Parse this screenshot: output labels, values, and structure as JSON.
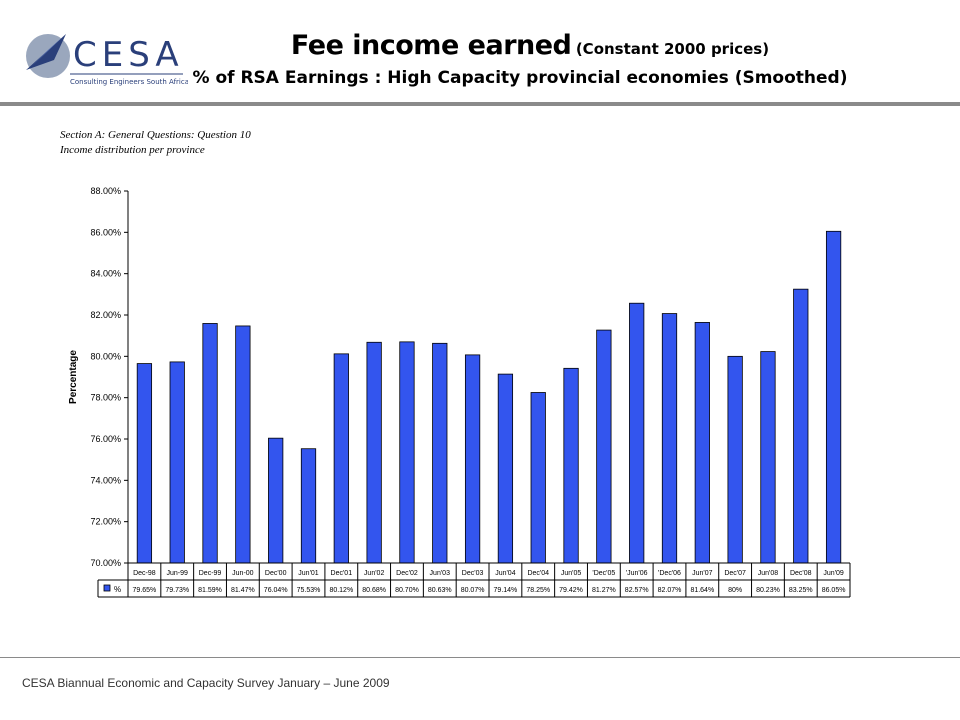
{
  "logo": {
    "wordmark": "CESA",
    "tagline": "Consulting Engineers South Africa",
    "icon": "cesa-arrow-logo-icon"
  },
  "header": {
    "title": "Fee income earned",
    "title_note": "(Constant 2000 prices)",
    "subtitle": "% of RSA Earnings : High Capacity provincial economies (Smoothed)"
  },
  "section": {
    "line1": "Section A: General Questions: Question 10",
    "line2": "Income distribution per province"
  },
  "footer": {
    "text": "CESA Biannual Economic and Capacity Survey January – June 2009"
  },
  "colors": {
    "bar": "#3355ee",
    "bar_stroke": "#000000",
    "rule": "#8a8a8a"
  },
  "chart_data": {
    "type": "bar",
    "ylabel": "Percentage",
    "ylim": [
      70,
      88
    ],
    "ytick_step": 2,
    "ytick_labels": [
      "70.00%",
      "72.00%",
      "74.00%",
      "76.00%",
      "78.00%",
      "80.00%",
      "82.00%",
      "84.00%",
      "86.00%",
      "88.00%"
    ],
    "grid": false,
    "legend": "data-table",
    "categories": [
      "Dec-98",
      "Jun-99",
      "Dec-99",
      "Jun-00",
      "Dec'00",
      "Jun'01",
      "Dec'01",
      "Jun'02",
      "Dec'02",
      "Jun'03",
      "Dec'03",
      "Jun'04",
      "Dec'04",
      "Jun'05",
      "'Dec'05",
      "'Jun'06",
      "'Dec'06",
      "Jun'07",
      "Dec'07",
      "Jun'08",
      "Dec'08",
      "Jun'09"
    ],
    "series": [
      {
        "name": "%",
        "values": [
          79.65,
          79.73,
          81.59,
          81.47,
          76.04,
          75.53,
          80.12,
          80.68,
          80.7,
          80.63,
          80.07,
          79.14,
          78.25,
          79.42,
          81.27,
          82.57,
          82.07,
          81.64,
          80,
          80.23,
          83.25,
          86.05
        ],
        "value_labels": [
          "79.65%",
          "79.73%",
          "81.59%",
          "81.47%",
          "76.04%",
          "75.53%",
          "80.12%",
          "80.68%",
          "80.70%",
          "80.63%",
          "80.07%",
          "79.14%",
          "78.25%",
          "79.42%",
          "81.27%",
          "82.57%",
          "82.07%",
          "81.64%",
          "80%",
          "80.23%",
          "83.25%",
          "86.05%"
        ]
      }
    ]
  }
}
